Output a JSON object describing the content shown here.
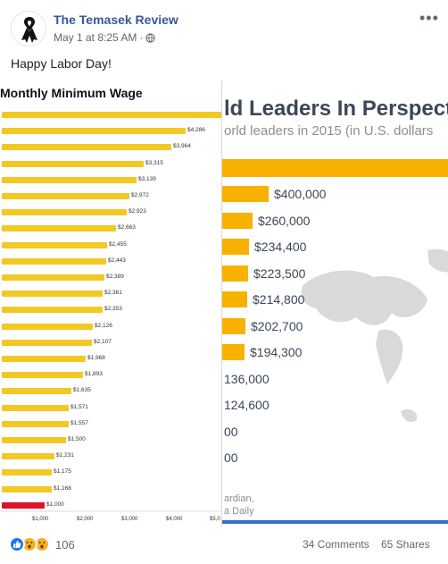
{
  "post": {
    "page_name": "The Temasek Review",
    "timestamp": "May 1 at 8:25 AM",
    "separator": "·",
    "privacy_icon": "globe-icon",
    "more_icon": "•••",
    "text": "Happy Labor Day!"
  },
  "image": {
    "left_title": "Monthly Minimum Wage",
    "right_title": "ld Leaders In Perspect",
    "right_subtitle": "orld leaders in 2015 (in U.S. dollars",
    "right_source_1": "ardian,",
    "right_source_2": "a Daily",
    "colors": {
      "bar": "#f2c824",
      "highlight_bar": "#d8152c",
      "right_bar": "#f9b100",
      "right_text": "#3a4857"
    }
  },
  "chart_data": [
    {
      "type": "bar",
      "orientation": "horizontal",
      "title": "Monthly Minimum Wage",
      "values": [
        null,
        4286,
        3964,
        3315,
        3139,
        2972,
        2923,
        2663,
        2455,
        2443,
        2389,
        2361,
        2353,
        2126,
        2107,
        1968,
        1893,
        1635,
        1571,
        1557,
        1500,
        1231,
        1175,
        1168,
        1000
      ],
      "value_labels": [
        "",
        "$4,286",
        "$3,964",
        "$3,315",
        "$3,139",
        "$2,972",
        "$2,923",
        "$2,663",
        "$2,455",
        "$2,443",
        "$2,389",
        "$2,361",
        "$2,353",
        "$2,126",
        "$2,107",
        "$1,968",
        "$1,893",
        "$1,635",
        "$1,571",
        "$1,557",
        "$1,500",
        "$1,231",
        "$1,175",
        "$1,168",
        "$1,000"
      ],
      "first_bar_note": "extends past crop",
      "highlight_index": 24,
      "xticks": [
        "$1,000",
        "$2,000",
        "$3,000",
        "$4,000",
        "$5,0"
      ],
      "xlim": [
        0,
        5000
      ]
    },
    {
      "type": "bar",
      "orientation": "horizontal",
      "title": "ld Leaders In Perspect",
      "subtitle": "orld leaders in 2015 (in U.S. dollars",
      "values": [
        400000,
        260000,
        234400,
        223500,
        214800,
        202700,
        194300,
        136000,
        124600,
        null,
        null
      ],
      "value_labels": [
        "$400,000",
        "$260,000",
        "$234,400",
        "$223,500",
        "$214,800",
        "$202,700",
        "$194,300",
        "136,000",
        "124,600",
        "00",
        "00"
      ]
    }
  ],
  "footer": {
    "reaction_icons": [
      "like-icon",
      "wow-icon",
      "wow-icon"
    ],
    "reaction_count": "106",
    "comments": "34 Comments",
    "shares": "65 Shares"
  }
}
